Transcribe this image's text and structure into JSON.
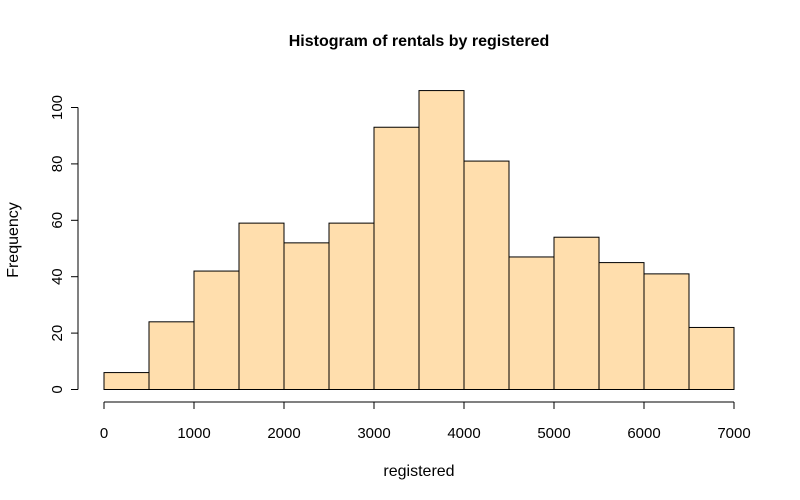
{
  "chart_data": {
    "type": "bar",
    "title": "Histogram of rentals by registered",
    "xlabel": "registered",
    "ylabel": "Frequency",
    "bins": [
      {
        "from": 0,
        "to": 500,
        "count": 6
      },
      {
        "from": 500,
        "to": 1000,
        "count": 24
      },
      {
        "from": 1000,
        "to": 1500,
        "count": 42
      },
      {
        "from": 1500,
        "to": 2000,
        "count": 59
      },
      {
        "from": 2000,
        "to": 2500,
        "count": 52
      },
      {
        "from": 2500,
        "to": 3000,
        "count": 59
      },
      {
        "from": 3000,
        "to": 3500,
        "count": 93
      },
      {
        "from": 3500,
        "to": 4000,
        "count": 106
      },
      {
        "from": 4000,
        "to": 4500,
        "count": 81
      },
      {
        "from": 4500,
        "to": 5000,
        "count": 47
      },
      {
        "from": 5000,
        "to": 5500,
        "count": 54
      },
      {
        "from": 5500,
        "to": 6000,
        "count": 45
      },
      {
        "from": 6000,
        "to": 6500,
        "count": 41
      },
      {
        "from": 6500,
        "to": 7000,
        "count": 22
      }
    ],
    "x_ticks": [
      "0",
      "1000",
      "2000",
      "3000",
      "4000",
      "5000",
      "6000",
      "7000"
    ],
    "y_ticks": [
      "0",
      "20",
      "40",
      "60",
      "80",
      "100"
    ],
    "xlim": [
      0,
      7000
    ],
    "ylim": [
      0,
      100
    ],
    "bar_color": "#ffdead",
    "bar_edge_color": "#000000",
    "grid": false,
    "legend": "none"
  }
}
